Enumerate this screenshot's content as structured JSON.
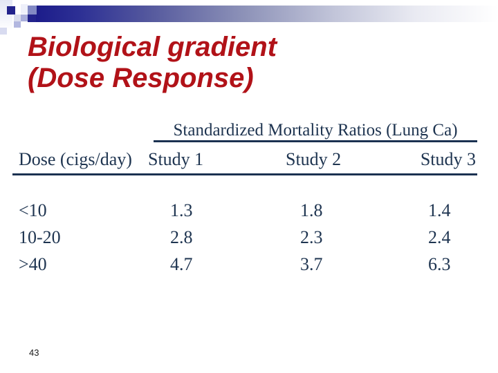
{
  "title": {
    "line1": "Biological gradient",
    "line2": "(Dose Response)"
  },
  "table": {
    "spanning_header": "Standardized Mortality Ratios (Lung Ca)",
    "columns": [
      "Dose (cigs/day)",
      "Study 1",
      "Study 2",
      "Study 3"
    ],
    "rows": [
      [
        "<10",
        "1.3",
        "1.8",
        "1.4"
      ],
      [
        "10-20",
        "2.8",
        "2.3",
        "2.4"
      ],
      [
        ">40",
        "4.7",
        "3.7",
        "6.3"
      ]
    ]
  },
  "footer": {
    "page_number": "43"
  },
  "colors": {
    "title_red": "#b11218",
    "table_navy": "#1e3450",
    "rule_navy": "#1b3151",
    "bar_navy": "#1c1c8a"
  }
}
